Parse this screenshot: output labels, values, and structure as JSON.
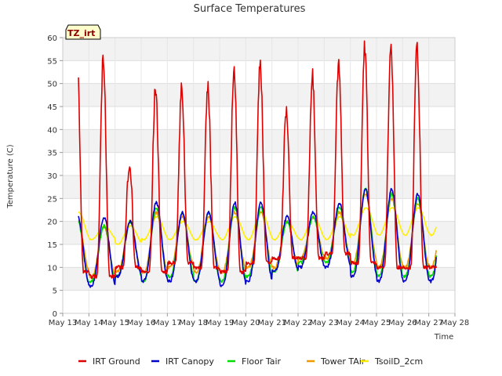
{
  "chart_data": {
    "type": "line",
    "title": "Surface Temperatures",
    "xlabel": "Time",
    "ylabel": "Temperature (C)",
    "tag": "TZ_irt",
    "xlim": [
      13,
      28
    ],
    "ylim": [
      0,
      60
    ],
    "yticks": [
      0,
      5,
      10,
      15,
      20,
      25,
      30,
      35,
      40,
      45,
      50,
      55,
      60
    ],
    "xticks": [
      {
        "v": 13,
        "label": "May 13"
      },
      {
        "v": 14,
        "label": "May 14"
      },
      {
        "v": 15,
        "label": "May 15"
      },
      {
        "v": 16,
        "label": "May 16"
      },
      {
        "v": 17,
        "label": "May 17"
      },
      {
        "v": 18,
        "label": "May 18"
      },
      {
        "v": 19,
        "label": "May 19"
      },
      {
        "v": 20,
        "label": "May 20"
      },
      {
        "v": 21,
        "label": "May 21"
      },
      {
        "v": 22,
        "label": "May 22"
      },
      {
        "v": 23,
        "label": "May 23"
      },
      {
        "v": 24,
        "label": "May 24"
      },
      {
        "v": 25,
        "label": "May 25"
      },
      {
        "v": 26,
        "label": "May 26"
      },
      {
        "v": 27,
        "label": "May 27"
      },
      {
        "v": 28,
        "label": "May 28"
      }
    ],
    "grid": true,
    "legend_position": "bottom",
    "x_start": 13.6,
    "x_end": 27.3,
    "series": [
      {
        "name": "IRT Ground",
        "color": "#dd0000",
        "daily": [
          {
            "min": 9,
            "max": 55
          },
          {
            "min": 8,
            "max": 56
          },
          {
            "min": 10,
            "max": 33
          },
          {
            "min": 9,
            "max": 49
          },
          {
            "min": 11,
            "max": 49
          },
          {
            "min": 10,
            "max": 49
          },
          {
            "min": 9,
            "max": 53
          },
          {
            "min": 11,
            "max": 55
          },
          {
            "min": 12,
            "max": 44
          },
          {
            "min": 12,
            "max": 52
          },
          {
            "min": 13,
            "max": 54
          },
          {
            "min": 11,
            "max": 58
          },
          {
            "min": 10,
            "max": 58
          },
          {
            "min": 10,
            "max": 58
          }
        ]
      },
      {
        "name": "IRT Canopy",
        "color": "#0000cc",
        "daily": [
          {
            "min": 6,
            "max": 21
          },
          {
            "min": 6,
            "max": 21
          },
          {
            "min": 8,
            "max": 20
          },
          {
            "min": 7,
            "max": 24
          },
          {
            "min": 7,
            "max": 22
          },
          {
            "min": 7,
            "max": 22
          },
          {
            "min": 6,
            "max": 24
          },
          {
            "min": 7,
            "max": 24
          },
          {
            "min": 9,
            "max": 21
          },
          {
            "min": 10,
            "max": 22
          },
          {
            "min": 10,
            "max": 24
          },
          {
            "min": 8,
            "max": 27
          },
          {
            "min": 7,
            "max": 27
          },
          {
            "min": 7,
            "max": 26
          }
        ]
      },
      {
        "name": "Floor Tair",
        "color": "#00dd00",
        "daily": [
          {
            "min": 6,
            "max": 20
          },
          {
            "min": 7,
            "max": 19
          },
          {
            "min": 8,
            "max": 20
          },
          {
            "min": 7,
            "max": 23
          },
          {
            "min": 8,
            "max": 22
          },
          {
            "min": 7,
            "max": 22
          },
          {
            "min": 7,
            "max": 23
          },
          {
            "min": 8,
            "max": 23
          },
          {
            "min": 9,
            "max": 20
          },
          {
            "min": 11,
            "max": 21
          },
          {
            "min": 11,
            "max": 23
          },
          {
            "min": 9,
            "max": 27
          },
          {
            "min": 8,
            "max": 26
          },
          {
            "min": 8,
            "max": 25
          }
        ]
      },
      {
        "name": "Tower TAir",
        "color": "#ee9900",
        "daily": [
          {
            "min": 9,
            "max": 20
          },
          {
            "min": 8,
            "max": 19
          },
          {
            "min": 9,
            "max": 20
          },
          {
            "min": 9,
            "max": 22
          },
          {
            "min": 10,
            "max": 21
          },
          {
            "min": 9,
            "max": 21
          },
          {
            "min": 9,
            "max": 22
          },
          {
            "min": 10,
            "max": 22
          },
          {
            "min": 10,
            "max": 20
          },
          {
            "min": 12,
            "max": 21
          },
          {
            "min": 12,
            "max": 22
          },
          {
            "min": 11,
            "max": 26
          },
          {
            "min": 10,
            "max": 25
          },
          {
            "min": 10,
            "max": 24
          }
        ]
      },
      {
        "name": "TsoilD_2cm",
        "color": "#ffee00",
        "daily": [
          {
            "min": 16,
            "max": 22
          },
          {
            "min": 16,
            "max": 19
          },
          {
            "min": 15,
            "max": 19
          },
          {
            "min": 16,
            "max": 21
          },
          {
            "min": 16,
            "max": 20
          },
          {
            "min": 16,
            "max": 20
          },
          {
            "min": 16,
            "max": 21
          },
          {
            "min": 16,
            "max": 22
          },
          {
            "min": 16,
            "max": 20
          },
          {
            "min": 16,
            "max": 21
          },
          {
            "min": 16,
            "max": 21
          },
          {
            "min": 17,
            "max": 23
          },
          {
            "min": 17,
            "max": 23
          },
          {
            "min": 17,
            "max": 23
          }
        ]
      }
    ]
  }
}
